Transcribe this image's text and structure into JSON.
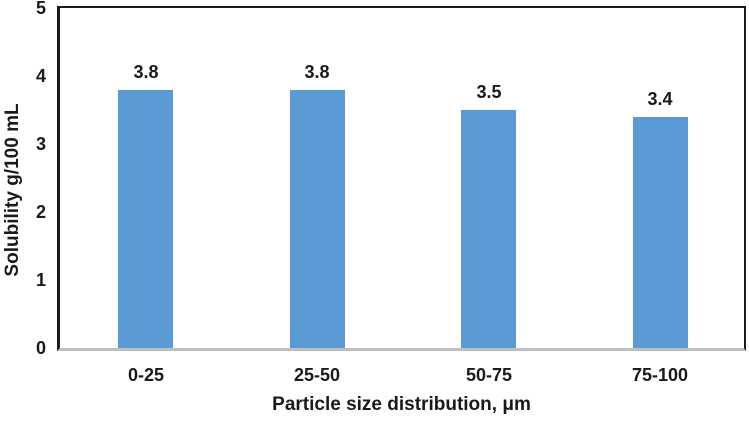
{
  "chart_data": {
    "type": "bar",
    "title": "",
    "categories": [
      "0-25",
      "25-50",
      "50-75",
      "75-100"
    ],
    "values": [
      3.8,
      3.8,
      3.5,
      3.4
    ],
    "data_labels": [
      "3.8",
      "3.8",
      "3.5",
      "3.4"
    ],
    "xlabel": "Particle size distribution, μm",
    "ylabel": "Solubility g/100 mL",
    "ylim": [
      0,
      5
    ],
    "yticks": [
      0,
      1,
      2,
      3,
      4,
      5
    ],
    "grid": false,
    "legend_position": "none",
    "colors": {
      "bar_fill": "#5b9bd5",
      "axis_line": "#1a1a1a",
      "baseline": "#bfbfbf",
      "text": "#1a1a1a"
    }
  }
}
